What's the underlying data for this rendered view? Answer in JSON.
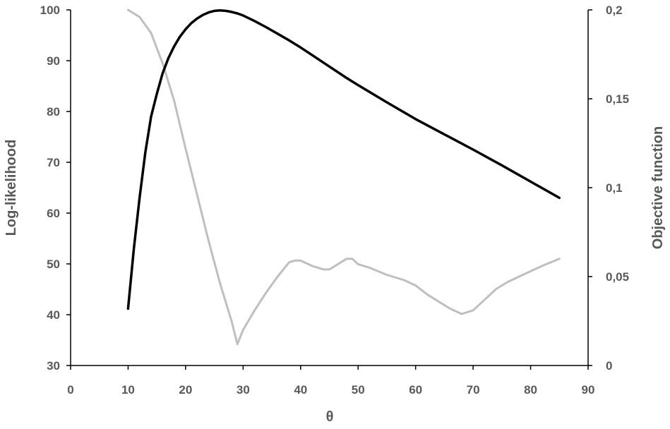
{
  "chart_data": {
    "type": "line",
    "title": "",
    "xlabel": "θ",
    "ylabel": "Log-likelihood",
    "y2label": "Objective function",
    "xlim": [
      0,
      90
    ],
    "ylim": [
      30,
      100
    ],
    "y2lim": [
      0,
      0.2
    ],
    "xticks": [
      0,
      10,
      20,
      30,
      40,
      50,
      60,
      70,
      80,
      90
    ],
    "yticks": [
      30,
      40,
      50,
      60,
      70,
      80,
      90,
      100
    ],
    "y2ticks": [
      0,
      0.05,
      0.1,
      0.15,
      0.2
    ],
    "xtick_labels": [
      "0",
      "10",
      "20",
      "30",
      "40",
      "50",
      "60",
      "70",
      "80",
      "90"
    ],
    "ytick_labels": [
      "30",
      "40",
      "50",
      "60",
      "70",
      "80",
      "90",
      "100"
    ],
    "y2tick_labels": [
      "0",
      "0,05",
      "0,1",
      "0,15",
      "0,2"
    ],
    "grid": false,
    "legend": "none",
    "series": [
      {
        "axis": "left",
        "color": "#000000",
        "x": [
          10,
          11,
          12,
          13,
          14,
          15,
          16,
          17,
          18,
          19,
          20,
          21,
          22,
          23,
          24,
          25,
          26,
          27,
          28,
          29,
          30,
          32,
          34,
          36,
          38,
          40,
          42,
          44,
          46,
          48,
          50,
          55,
          60,
          65,
          70,
          75,
          80,
          85
        ],
        "y": [
          41.2,
          53,
          63,
          72,
          79,
          83.5,
          87.5,
          90.5,
          92.8,
          94.7,
          96.2,
          97.4,
          98.3,
          99.0,
          99.5,
          99.8,
          99.9,
          99.8,
          99.6,
          99.3,
          98.9,
          97.8,
          96.6,
          95.3,
          94.0,
          92.6,
          91.1,
          89.6,
          88.1,
          86.6,
          85.2,
          81.8,
          78.5,
          75.5,
          72.5,
          69.4,
          66.2,
          63.0
        ]
      },
      {
        "axis": "right",
        "color": "#bfbfbf",
        "x": [
          10,
          12,
          14,
          16,
          18,
          20,
          22,
          24,
          26,
          28,
          29,
          30,
          32,
          34,
          36,
          38,
          39,
          40,
          42,
          44,
          45,
          46,
          48,
          49,
          50,
          52,
          55,
          58,
          60,
          62,
          64,
          66,
          68,
          70,
          72,
          74,
          76,
          78,
          80,
          82,
          85
        ],
        "y": [
          0.2,
          0.196,
          0.187,
          0.17,
          0.149,
          0.122,
          0.096,
          0.07,
          0.046,
          0.025,
          0.012,
          0.02,
          0.031,
          0.041,
          0.05,
          0.058,
          0.059,
          0.059,
          0.056,
          0.054,
          0.054,
          0.056,
          0.06,
          0.06,
          0.057,
          0.055,
          0.051,
          0.048,
          0.045,
          0.04,
          0.036,
          0.032,
          0.029,
          0.031,
          0.037,
          0.043,
          0.047,
          0.05,
          0.053,
          0.056,
          0.06
        ]
      }
    ]
  }
}
